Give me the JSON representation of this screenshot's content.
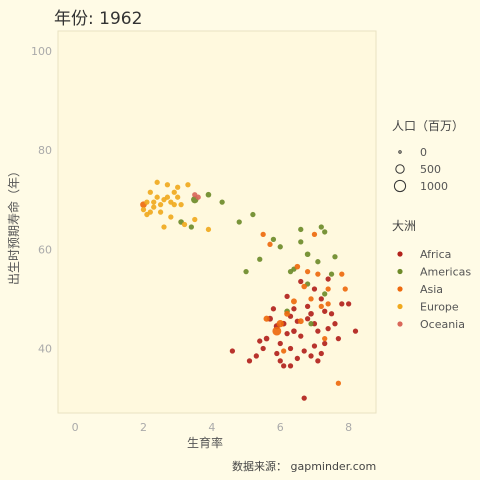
{
  "chart_data": {
    "type": "scatter",
    "title": "年份: 1962",
    "xlabel": "生育率",
    "ylabel": "出生时预期寿命（年）",
    "xlim": [
      -0.5,
      8.8
    ],
    "ylim": [
      27,
      104
    ],
    "x_ticks": [
      "0",
      "2",
      "4",
      "6",
      "8"
    ],
    "y_ticks": [
      "40",
      "60",
      "80",
      "100"
    ],
    "grid": false,
    "size_legend": {
      "title": "人口（百万）",
      "entries": [
        "0",
        "500",
        "1000"
      ]
    },
    "color_legend": {
      "title": "大洲",
      "entries": [
        {
          "name": "Africa",
          "color": "#b2221c"
        },
        {
          "name": "Americas",
          "color": "#6e8b2a"
        },
        {
          "name": "Asia",
          "color": "#ee6a0e"
        },
        {
          "name": "Europe",
          "color": "#f0a91e"
        },
        {
          "name": "Oceania",
          "color": "#d9675a"
        }
      ]
    },
    "caption": "数据来源： gapminder.com",
    "series": [
      {
        "name": "Africa",
        "color": "#b2221c",
        "points": [
          [
            5.7,
            46,
            0.5
          ],
          [
            5.9,
            44.5,
            0.6
          ],
          [
            6.1,
            45,
            0.4
          ],
          [
            6.3,
            46.5,
            0.3
          ],
          [
            6.5,
            45.5,
            0.3
          ],
          [
            6.8,
            46,
            0.3
          ],
          [
            7.0,
            45,
            0.3
          ],
          [
            5.6,
            42,
            0.4
          ],
          [
            6.2,
            43,
            0.3
          ],
          [
            6.6,
            42.5,
            0.3
          ],
          [
            7.1,
            43.5,
            0.3
          ],
          [
            7.4,
            44,
            0.3
          ],
          [
            5.5,
            40,
            0.3
          ],
          [
            5.9,
            39,
            0.3
          ],
          [
            6.3,
            40,
            0.3
          ],
          [
            6.7,
            39.5,
            0.3
          ],
          [
            7.0,
            40.5,
            0.3
          ],
          [
            7.3,
            41,
            0.3
          ],
          [
            6.0,
            37.5,
            0.3
          ],
          [
            6.5,
            38,
            0.3
          ],
          [
            6.9,
            38.5,
            0.3
          ],
          [
            7.2,
            39,
            0.3
          ],
          [
            5.3,
            38.5,
            0.3
          ],
          [
            6.1,
            36.5,
            0.3
          ],
          [
            6.7,
            30,
            0.3
          ],
          [
            4.6,
            39.5,
            0.3
          ],
          [
            7.5,
            47,
            0.3
          ],
          [
            7.8,
            49,
            0.3
          ],
          [
            8.0,
            49,
            0.3
          ],
          [
            8.2,
            43.5,
            0.3
          ],
          [
            7.6,
            45,
            0.3
          ],
          [
            6.4,
            48,
            0.3
          ],
          [
            6.8,
            48.5,
            0.3
          ],
          [
            7.2,
            50,
            0.3
          ],
          [
            5.8,
            48,
            0.3
          ],
          [
            7.0,
            52,
            0.3
          ],
          [
            6.6,
            53.5,
            0.3
          ],
          [
            7.4,
            54,
            0.3
          ],
          [
            6.2,
            50.5,
            0.3
          ],
          [
            7.7,
            42,
            0.3
          ],
          [
            6.0,
            41,
            0.3
          ],
          [
            5.4,
            41.5,
            0.3
          ],
          [
            5.1,
            37.5,
            0.3
          ],
          [
            6.4,
            43.5,
            0.4
          ],
          [
            6.9,
            47,
            0.4
          ],
          [
            7.3,
            47.5,
            0.3
          ],
          [
            7.1,
            37.5,
            0.3
          ],
          [
            6.3,
            36.5,
            0.3
          ]
        ]
      },
      {
        "name": "Americas",
        "color": "#6e8b2a",
        "points": [
          [
            3.5,
            70,
            1.2
          ],
          [
            3.9,
            71,
            0.4
          ],
          [
            4.3,
            69.5,
            0.3
          ],
          [
            3.1,
            65.5,
            0.4
          ],
          [
            3.4,
            64.5,
            0.3
          ],
          [
            4.8,
            65.5,
            0.3
          ],
          [
            5.2,
            67,
            0.3
          ],
          [
            5.8,
            62,
            0.3
          ],
          [
            6.0,
            60.5,
            0.3
          ],
          [
            6.6,
            61.5,
            0.3
          ],
          [
            6.8,
            59,
            0.4
          ],
          [
            7.1,
            57.5,
            0.3
          ],
          [
            6.4,
            56,
            0.3
          ],
          [
            6.8,
            53,
            0.3
          ],
          [
            7.3,
            51,
            0.3
          ],
          [
            7.5,
            55,
            0.3
          ],
          [
            5.4,
            58,
            0.3
          ],
          [
            6.6,
            64,
            0.3
          ],
          [
            7.2,
            64.5,
            0.3
          ],
          [
            6.2,
            47.5,
            0.4
          ],
          [
            7.6,
            58.5,
            0.3
          ],
          [
            6.9,
            45,
            0.3
          ],
          [
            5.0,
            55.5,
            0.3
          ],
          [
            6.3,
            55.5,
            0.3
          ],
          [
            7.3,
            63.5,
            0.3
          ]
        ]
      },
      {
        "name": "Asia",
        "color": "#ee6a0e",
        "points": [
          [
            5.9,
            43.5,
            2.2
          ],
          [
            6.0,
            45,
            1.2
          ],
          [
            5.6,
            46,
            0.6
          ],
          [
            6.6,
            45.5,
            0.5
          ],
          [
            6.4,
            49.5,
            0.5
          ],
          [
            6.2,
            47,
            0.5
          ],
          [
            6.7,
            52.5,
            0.4
          ],
          [
            6.9,
            50,
            0.3
          ],
          [
            7.1,
            55,
            0.3
          ],
          [
            7.4,
            52,
            0.3
          ],
          [
            7.9,
            52,
            0.3
          ],
          [
            7.4,
            49,
            0.3
          ],
          [
            7.7,
            33,
            0.3
          ],
          [
            5.7,
            61,
            0.3
          ],
          [
            6.5,
            56.5,
            0.4
          ],
          [
            7.3,
            42,
            0.3
          ],
          [
            7.8,
            55,
            0.3
          ],
          [
            6.8,
            55.5,
            0.3
          ],
          [
            5.5,
            63,
            0.3
          ],
          [
            7.0,
            63,
            0.3
          ],
          [
            2.0,
            69,
            0.8
          ],
          [
            7.2,
            48.5,
            0.3
          ],
          [
            6.1,
            39.5,
            0.3
          ]
        ]
      },
      {
        "name": "Europe",
        "color": "#f0a91e",
        "points": [
          [
            2.0,
            68,
            0.3
          ],
          [
            2.1,
            69.5,
            0.3
          ],
          [
            2.2,
            67.5,
            0.3
          ],
          [
            2.3,
            69.5,
            0.3
          ],
          [
            2.4,
            70.5,
            0.3
          ],
          [
            2.5,
            69,
            0.3
          ],
          [
            2.6,
            70,
            0.3
          ],
          [
            2.7,
            70.5,
            0.3
          ],
          [
            2.8,
            69.5,
            0.3
          ],
          [
            2.9,
            69,
            0.3
          ],
          [
            3.0,
            70.5,
            0.3
          ],
          [
            2.4,
            73.5,
            0.3
          ],
          [
            2.7,
            73,
            0.3
          ],
          [
            3.0,
            72.5,
            0.3
          ],
          [
            3.3,
            73,
            0.3
          ],
          [
            2.8,
            66.5,
            0.3
          ],
          [
            2.6,
            64.5,
            0.3
          ],
          [
            3.2,
            65,
            0.3
          ],
          [
            3.5,
            66,
            0.3
          ],
          [
            3.9,
            64,
            0.3
          ],
          [
            2.2,
            71.5,
            0.3
          ],
          [
            2.9,
            71.5,
            0.3
          ],
          [
            2.5,
            67.5,
            0.3
          ],
          [
            3.1,
            69,
            0.3
          ],
          [
            2.1,
            67,
            0.3
          ],
          [
            2.3,
            68.5,
            0.3
          ]
        ]
      },
      {
        "name": "Oceania",
        "color": "#d9675a",
        "points": [
          [
            3.5,
            71,
            0.3
          ],
          [
            3.6,
            70.5,
            0.3
          ]
        ]
      }
    ]
  }
}
